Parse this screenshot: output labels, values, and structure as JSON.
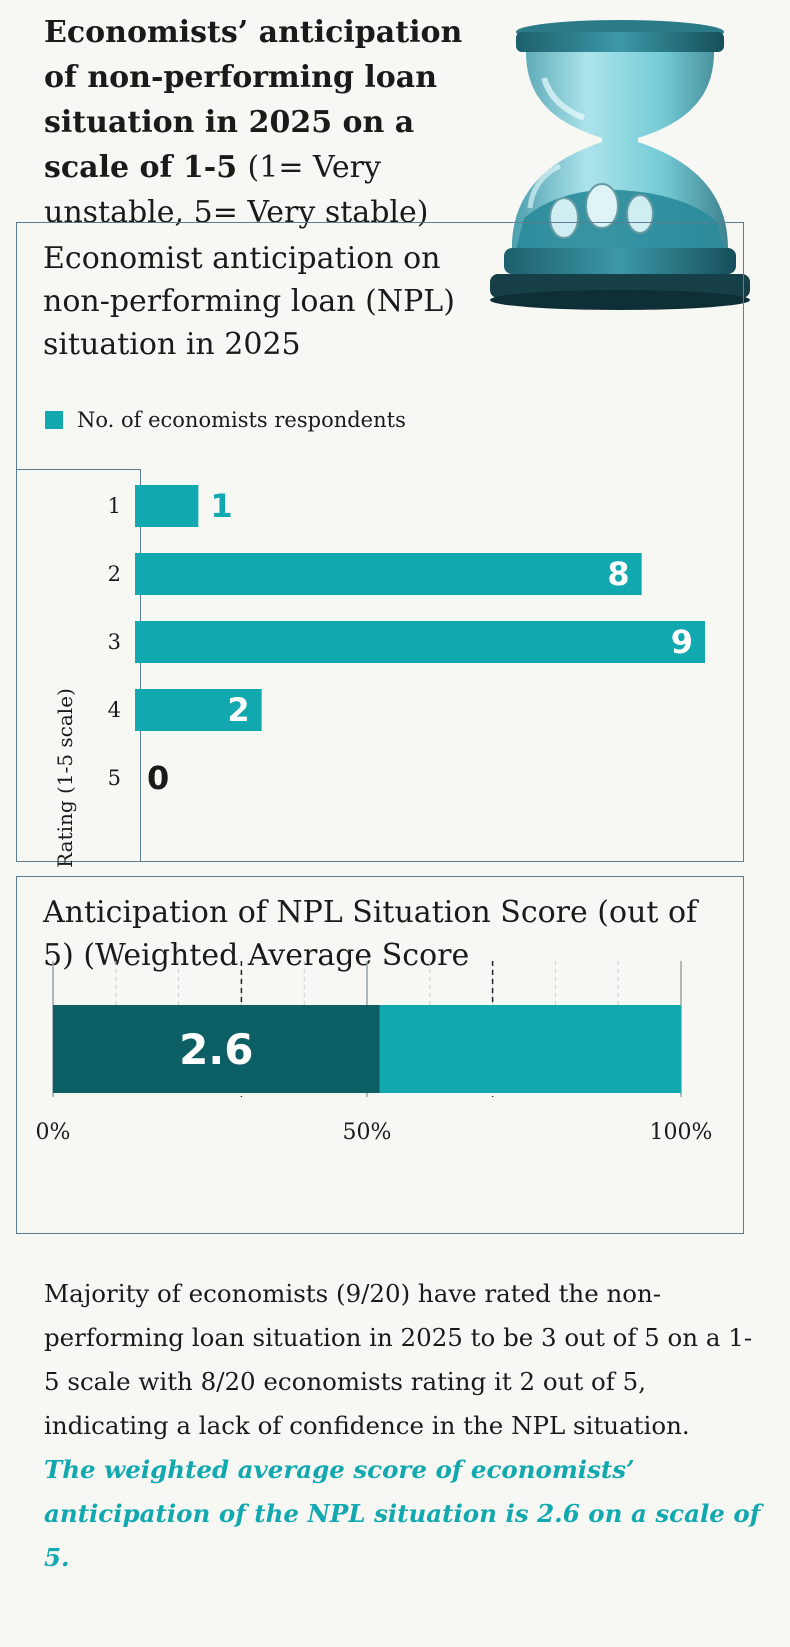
{
  "header": {
    "title_bold": "Economists’ anticipation of non-performing loan situation in 2025 on a scale of 1-5",
    "title_note": "(1= Very unstable, 5= Very stable)"
  },
  "colors": {
    "teal": "#12a8b0",
    "dark_teal": "#0d5f66",
    "label_dark": "#1a1a1a"
  },
  "chart_data": [
    {
      "type": "bar",
      "orientation": "horizontal",
      "title": "Economist anticipation on non-performing loan (NPL) situation in 2025",
      "legend": [
        "No. of economists respondents"
      ],
      "ylabel": "Rating (1-5 scale)",
      "categories": [
        "1",
        "2",
        "3",
        "4",
        "5"
      ],
      "values": [
        1,
        8,
        9,
        2,
        0
      ],
      "xlim": [
        0,
        9
      ]
    },
    {
      "type": "bar",
      "orientation": "horizontal",
      "stacked": true,
      "title": "Anticipation of NPL Situation Score (out of 5) (Weighted Average Score",
      "value": 2.6,
      "value_label": "2.6",
      "max": 5,
      "xtick_labels": [
        "0%",
        "50%",
        "100%"
      ]
    }
  ],
  "summary": {
    "body": "Majority of economists (9/20) have rated the non-performing loan situation in 2025 to be 3 out of 5 on a 1-5 scale with 8/20 economists rating it 2 out of 5, indicating a lack of confidence in the NPL situation.",
    "highlight": "The weighted average score of economists’ anticipation of the NPL situation is 2.6 on a scale of 5."
  }
}
